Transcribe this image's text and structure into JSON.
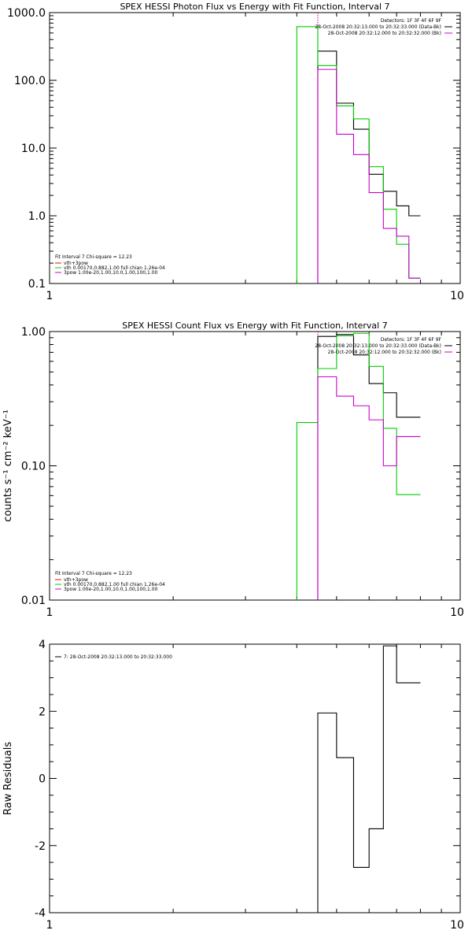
{
  "chart_data": [
    {
      "type": "line",
      "title": "SPEX HESSI Photon Flux vs Energy with Fit Function, Interval 7",
      "xlabel": "",
      "ylabel": "",
      "xscale": "log",
      "yscale": "log",
      "xlim": [
        1,
        10
      ],
      "ylim": [
        0.1,
        1000
      ],
      "xticks": [
        "1",
        "10"
      ],
      "yticks": [
        {
          "v": 1000,
          "label": "1000.0"
        },
        {
          "v": 100,
          "label": "100.0"
        },
        {
          "v": 10,
          "label": "10.0"
        },
        {
          "v": 1,
          "label": "1.0"
        },
        {
          "v": 0.1,
          "label": "0.1"
        }
      ],
      "vline": {
        "x": 4.5,
        "color": "#aa00aa"
      },
      "info_block": {
        "placement": "top-right",
        "lines": [
          {
            "text": "Detectors: 1F 3F 4F 6F 9F",
            "color": ""
          },
          {
            "text": "28-Oct-2008 20:32:13.000 to 20:32:33.000 (Data-Bk)",
            "color": "#000000"
          },
          {
            "text": "28-Oct-2008 20:32:12.000 to 20:32:32.000 (Bk)",
            "color": "#cc00cc"
          }
        ]
      },
      "legend": {
        "placement": "bottom-left",
        "header": "Fit Interval 7   Chi-square = 12.23",
        "items": [
          {
            "text": "vth+3pow",
            "color": "#ff0000"
          },
          {
            "text": "vth 0.00170,0.882,1.00  full chian 1.26e-04",
            "color": "#00cc00"
          },
          {
            "text": "3pow 1.00e-20,1.00,10.0,1.00,100,1.00",
            "color": "#cc00cc"
          }
        ]
      },
      "series": [
        {
          "color": "#000000",
          "edges": [
            4.5,
            5,
            5.5,
            6,
            6.5,
            7,
            7.5,
            8
          ],
          "values": [
            270,
            46,
            19,
            4.1,
            2.3,
            1.4,
            1.0
          ],
          "min": 0.1
        },
        {
          "color": "#00cc00",
          "edges": [
            4,
            4.5,
            5,
            5.5,
            6,
            6.5,
            7,
            7.5,
            8
          ],
          "values": [
            620,
            165,
            42,
            27,
            5.3,
            1.25,
            0.38,
            0.12
          ],
          "min": 0.1
        },
        {
          "color": "#cc00cc",
          "edges": [
            4.5,
            5,
            5.5,
            6,
            6.5,
            7,
            7.5,
            8
          ],
          "values": [
            145,
            16,
            8.0,
            2.2,
            0.65,
            0.5,
            0.12
          ],
          "min": 0.1
        }
      ]
    },
    {
      "type": "line",
      "title": "SPEX HESSI Count Flux vs Energy with Fit Function, Interval 7",
      "xlabel": "",
      "ylabel": "counts s⁻¹ cm⁻² keV⁻¹",
      "xscale": "log",
      "yscale": "log",
      "xlim": [
        1,
        10
      ],
      "ylim": [
        0.01,
        1
      ],
      "xticks": [
        "1",
        "10"
      ],
      "yticks": [
        {
          "v": 1,
          "label": "1.00"
        },
        {
          "v": 0.1,
          "label": "0.10"
        },
        {
          "v": 0.01,
          "label": "0.01"
        }
      ],
      "vline": {
        "x": 4.5,
        "color": "#aa00aa"
      },
      "info_block": {
        "placement": "top-right",
        "lines": [
          {
            "text": "Detectors: 1F 3F 4F 6F 9F",
            "color": ""
          },
          {
            "text": "28-Oct-2008 20:32:13.000 to 20:32:33.000 (Data-Bk)",
            "color": "#000000"
          },
          {
            "text": "28-Oct-2008 20:32:12.000 to 20:32:32.000 (Bk)",
            "color": "#cc00cc"
          }
        ]
      },
      "legend": {
        "placement": "bottom-left",
        "header": "Fit Interval 7   Chi-square = 12.23",
        "items": [
          {
            "text": "vth+3pow",
            "color": "#ff0000"
          },
          {
            "text": "vth 0.00170,0.882,1.00  full chian 1.26e-04",
            "color": "#00cc00"
          },
          {
            "text": "3pow 1.00e-20,1.00,10.0,1.00,100,1.00",
            "color": "#cc00cc"
          }
        ]
      },
      "series": [
        {
          "color": "#000000",
          "edges": [
            4.5,
            5,
            5.5,
            6,
            6.5,
            7,
            7.5,
            8
          ],
          "values": [
            0.92,
            0.95,
            0.67,
            0.41,
            0.35,
            0.23,
            0.23
          ],
          "min": 0.01
        },
        {
          "color": "#00cc00",
          "edges": [
            4,
            4.5,
            5,
            5.5,
            6,
            6.5,
            7,
            7.5,
            8
          ],
          "values": [
            0.21,
            0.53,
            0.93,
            0.97,
            0.55,
            0.19,
            0.061,
            0.061
          ],
          "min": 0.01
        },
        {
          "color": "#cc00cc",
          "edges": [
            4.5,
            5,
            5.5,
            6,
            6.5,
            7,
            7.5,
            8
          ],
          "values": [
            0.46,
            0.33,
            0.28,
            0.22,
            0.1,
            0.165,
            0.165
          ],
          "min": 0.01
        }
      ]
    },
    {
      "type": "line",
      "title": "",
      "xlabel": "",
      "ylabel": "Raw Residuals",
      "xscale": "log",
      "yscale": "linear",
      "xlim": [
        1,
        10
      ],
      "ylim": [
        -4,
        4
      ],
      "xticks": [
        "1",
        "10"
      ],
      "yticks": [
        {
          "v": 4,
          "label": "4"
        },
        {
          "v": 2,
          "label": "2"
        },
        {
          "v": 0,
          "label": "0"
        },
        {
          "v": -2,
          "label": "-2"
        },
        {
          "v": -4,
          "label": "-4"
        }
      ],
      "legend": {
        "placement": "top-left",
        "items": [
          {
            "text": "7: 28-Oct-2008 20:32:13.000 to 20:32:33.000",
            "color": "#000000"
          }
        ]
      },
      "series": [
        {
          "color": "#000000",
          "edges": [
            4.5,
            5,
            5.5,
            6,
            6.5,
            7,
            7.5,
            8
          ],
          "values": [
            1.95,
            0.62,
            -2.65,
            -1.5,
            3.95,
            2.85,
            2.85
          ],
          "min": -4
        }
      ]
    }
  ]
}
